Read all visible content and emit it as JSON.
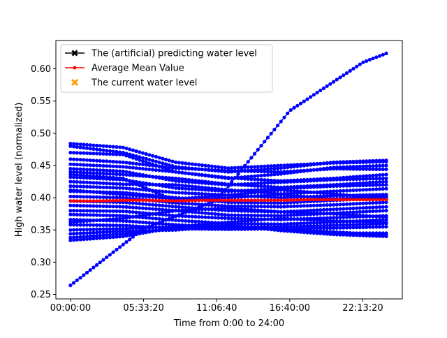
{
  "chart_data": {
    "type": "line",
    "xlabel": "Time from 0:00 to 24:00",
    "ylabel": "High water level (normalized)",
    "x_unit": "time of day (hh:mm:ss)",
    "xlim": [
      "-01:06:40",
      "25:13:20"
    ],
    "ylim": [
      0.243,
      0.644
    ],
    "x_ticks": [
      "00:00:00",
      "05:33:20",
      "11:06:40",
      "16:40:00",
      "22:13:20"
    ],
    "y_ticks": [
      "0.25",
      "0.30",
      "0.35",
      "0.40",
      "0.45",
      "0.50",
      "0.55",
      "0.60"
    ],
    "grid": false,
    "legend": {
      "placement": "top-left",
      "entries": [
        {
          "label": "The (artificial) predicting water level",
          "color": "#000000",
          "marker": "X-line"
        },
        {
          "label": "Average Mean Value",
          "color": "#ff0000",
          "marker": "dot-line"
        },
        {
          "label": "The current water level",
          "color": "#ff9900",
          "marker": "X"
        }
      ]
    },
    "trajectory_color": "#0000ff",
    "trajectories": [
      {
        "x": [
          "00:00:00",
          "05:33:20",
          "11:06:40",
          "16:40:00",
          "22:13:20",
          "24:00:00"
        ],
        "y": [
          0.264,
          0.352,
          0.396,
          0.535,
          0.61,
          0.624
        ]
      },
      {
        "x": [
          "00:00:00",
          "04:00:00",
          "08:00:00",
          "12:00:00",
          "16:00:00",
          "20:00:00",
          "24:00:00"
        ],
        "y": [
          0.484,
          0.478,
          0.455,
          0.446,
          0.45,
          0.454,
          0.456
        ]
      },
      {
        "x": [
          "00:00:00",
          "04:00:00",
          "08:00:00",
          "12:00:00",
          "16:00:00",
          "20:00:00",
          "24:00:00"
        ],
        "y": [
          0.48,
          0.47,
          0.448,
          0.44,
          0.446,
          0.455,
          0.458
        ]
      },
      {
        "x": [
          "00:00:00",
          "04:00:00",
          "08:00:00",
          "12:00:00",
          "16:00:00",
          "20:00:00",
          "24:00:00"
        ],
        "y": [
          0.47,
          0.467,
          0.44,
          0.43,
          0.437,
          0.447,
          0.45
        ]
      },
      {
        "x": [
          "00:00:00",
          "04:00:00",
          "08:00:00",
          "12:00:00",
          "16:00:00",
          "20:00:00",
          "24:00:00"
        ],
        "y": [
          0.46,
          0.455,
          0.446,
          0.442,
          0.44,
          0.445,
          0.444
        ]
      },
      {
        "x": [
          "00:00:00",
          "04:00:00",
          "08:00:00",
          "12:00:00",
          "16:00:00",
          "20:00:00",
          "24:00:00"
        ],
        "y": [
          0.452,
          0.448,
          0.44,
          0.431,
          0.426,
          0.43,
          0.436
        ]
      },
      {
        "x": [
          "00:00:00",
          "04:00:00",
          "08:00:00",
          "12:00:00",
          "16:00:00",
          "20:00:00",
          "24:00:00"
        ],
        "y": [
          0.445,
          0.441,
          0.426,
          0.42,
          0.424,
          0.428,
          0.43
        ]
      },
      {
        "x": [
          "00:00:00",
          "04:00:00",
          "08:00:00",
          "12:00:00",
          "16:00:00",
          "20:00:00",
          "24:00:00"
        ],
        "y": [
          0.44,
          0.436,
          0.43,
          0.421,
          0.416,
          0.42,
          0.425
        ]
      },
      {
        "x": [
          "00:00:00",
          "04:00:00",
          "08:00:00",
          "12:00:00",
          "16:00:00",
          "20:00:00",
          "24:00:00"
        ],
        "y": [
          0.432,
          0.428,
          0.415,
          0.41,
          0.414,
          0.418,
          0.42
        ]
      },
      {
        "x": [
          "00:00:00",
          "04:00:00",
          "08:00:00",
          "12:00:00",
          "16:00:00",
          "20:00:00",
          "24:00:00"
        ],
        "y": [
          0.425,
          0.421,
          0.42,
          0.412,
          0.406,
          0.41,
          0.414
        ]
      },
      {
        "x": [
          "00:00:00",
          "04:00:00",
          "08:00:00",
          "12:00:00",
          "16:00:00",
          "20:00:00",
          "24:00:00"
        ],
        "y": [
          0.418,
          0.415,
          0.408,
          0.404,
          0.4,
          0.403,
          0.405
        ]
      },
      {
        "x": [
          "00:00:00",
          "04:00:00",
          "08:00:00",
          "12:00:00",
          "16:00:00",
          "20:00:00",
          "24:00:00"
        ],
        "y": [
          0.41,
          0.408,
          0.4,
          0.393,
          0.392,
          0.396,
          0.4
        ]
      },
      {
        "x": [
          "00:00:00",
          "04:00:00",
          "08:00:00",
          "12:00:00",
          "16:00:00",
          "20:00:00",
          "24:00:00"
        ],
        "y": [
          0.402,
          0.4,
          0.392,
          0.387,
          0.386,
          0.389,
          0.393
        ]
      },
      {
        "x": [
          "00:00:00",
          "04:00:00",
          "08:00:00",
          "12:00:00",
          "16:00:00",
          "20:00:00",
          "24:00:00"
        ],
        "y": [
          0.395,
          0.393,
          0.386,
          0.38,
          0.378,
          0.382,
          0.386
        ]
      },
      {
        "x": [
          "00:00:00",
          "04:00:00",
          "08:00:00",
          "12:00:00",
          "16:00:00",
          "20:00:00",
          "24:00:00"
        ],
        "y": [
          0.388,
          0.386,
          0.38,
          0.373,
          0.372,
          0.376,
          0.38
        ]
      },
      {
        "x": [
          "00:00:00",
          "04:00:00",
          "08:00:00",
          "12:00:00",
          "16:00:00",
          "20:00:00",
          "24:00:00"
        ],
        "y": [
          0.38,
          0.379,
          0.372,
          0.368,
          0.366,
          0.369,
          0.372
        ]
      },
      {
        "x": [
          "00:00:00",
          "04:00:00",
          "08:00:00",
          "12:00:00",
          "16:00:00",
          "20:00:00",
          "24:00:00"
        ],
        "y": [
          0.374,
          0.372,
          0.365,
          0.36,
          0.359,
          0.362,
          0.366
        ]
      },
      {
        "x": [
          "00:00:00",
          "04:00:00",
          "08:00:00",
          "12:00:00",
          "16:00:00",
          "20:00:00",
          "24:00:00"
        ],
        "y": [
          0.366,
          0.364,
          0.358,
          0.354,
          0.355,
          0.357,
          0.36
        ]
      },
      {
        "x": [
          "00:00:00",
          "04:00:00",
          "08:00:00",
          "12:00:00",
          "16:00:00",
          "20:00:00",
          "24:00:00"
        ],
        "y": [
          0.358,
          0.357,
          0.352,
          0.351,
          0.352,
          0.353,
          0.355
        ]
      },
      {
        "x": [
          "00:00:00",
          "04:00:00",
          "08:00:00",
          "12:00:00",
          "16:00:00",
          "20:00:00",
          "24:00:00"
        ],
        "y": [
          0.35,
          0.352,
          0.355,
          0.362,
          0.368,
          0.364,
          0.362
        ]
      },
      {
        "x": [
          "00:00:00",
          "04:00:00",
          "08:00:00",
          "12:00:00",
          "16:00:00",
          "20:00:00",
          "24:00:00"
        ],
        "y": [
          0.344,
          0.348,
          0.35,
          0.356,
          0.35,
          0.345,
          0.345
        ]
      },
      {
        "x": [
          "00:00:00",
          "04:00:00",
          "08:00:00",
          "12:00:00",
          "16:00:00",
          "20:00:00",
          "24:00:00"
        ],
        "y": [
          0.338,
          0.344,
          0.352,
          0.353,
          0.352,
          0.347,
          0.342
        ]
      },
      {
        "x": [
          "00:00:00",
          "04:00:00",
          "08:00:00",
          "12:00:00",
          "16:00:00",
          "20:00:00",
          "24:00:00"
        ],
        "y": [
          0.334,
          0.34,
          0.354,
          0.358,
          0.349,
          0.343,
          0.34
        ]
      },
      {
        "x": [
          "00:00:00",
          "04:00:00",
          "08:00:00",
          "12:00:00",
          "16:00:00",
          "20:00:00",
          "24:00:00"
        ],
        "y": [
          0.436,
          0.43,
          0.395,
          0.4,
          0.405,
          0.398,
          0.402
        ]
      },
      {
        "x": [
          "00:00:00",
          "04:00:00",
          "08:00:00",
          "12:00:00",
          "16:00:00",
          "20:00:00",
          "24:00:00"
        ],
        "y": [
          0.362,
          0.368,
          0.38,
          0.384,
          0.378,
          0.375,
          0.37
        ]
      },
      {
        "x": [
          "00:00:00",
          "04:00:00",
          "08:00:00",
          "12:00:00",
          "16:00:00",
          "20:00:00",
          "24:00:00"
        ],
        "y": [
          0.412,
          0.405,
          0.398,
          0.404,
          0.412,
          0.406,
          0.398
        ]
      }
    ],
    "series": [
      {
        "name": "Average Mean Value",
        "color": "#ff0000",
        "x": [
          "00:00:00",
          "02:00:00",
          "04:00:00",
          "06:00:00",
          "08:00:00",
          "10:00:00",
          "12:00:00",
          "14:00:00",
          "16:00:00",
          "18:00:00",
          "20:00:00",
          "22:00:00",
          "24:00:00"
        ],
        "y": [
          0.395,
          0.395,
          0.396,
          0.396,
          0.395,
          0.396,
          0.396,
          0.396,
          0.396,
          0.397,
          0.397,
          0.397,
          0.397
        ]
      }
    ]
  }
}
